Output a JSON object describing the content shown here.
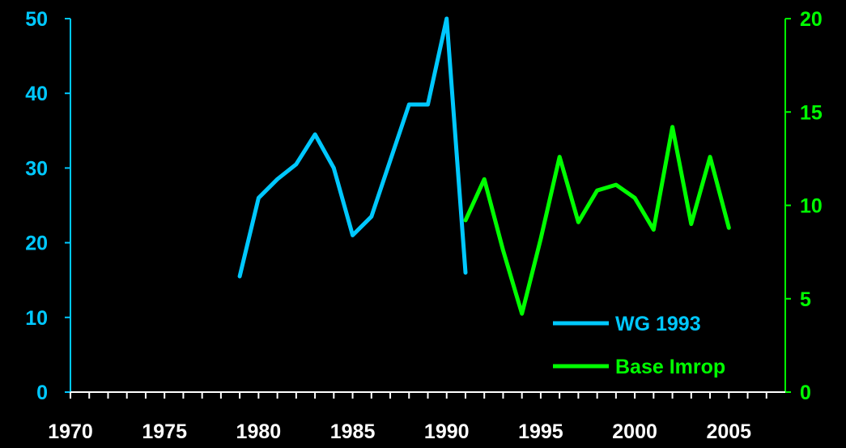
{
  "chart_data": {
    "type": "line",
    "title": "",
    "xlabel": "",
    "ylabel": "",
    "y2label": "",
    "xlim": [
      1970,
      2008
    ],
    "ylim": [
      0,
      50
    ],
    "y2lim": [
      0,
      20
    ],
    "x_ticks": [
      "1970",
      "1975",
      "1980",
      "1985",
      "1990",
      "1995",
      "2000",
      "2005"
    ],
    "y_ticks": [
      "0",
      "10",
      "20",
      "30",
      "40",
      "50"
    ],
    "y2_ticks": [
      "0",
      "5",
      "10",
      "15",
      "20"
    ],
    "grid": false,
    "legend_position": "bottom-right",
    "series": [
      {
        "name": "WG 1993",
        "axis": "left",
        "color": "#00c8ff",
        "x": [
          1979,
          1980,
          1981,
          1982,
          1983,
          1984,
          1985,
          1986,
          1987,
          1988,
          1989,
          1990,
          1991
        ],
        "y": [
          15.5,
          26,
          28.5,
          30.5,
          34.5,
          30,
          21,
          23.5,
          31,
          38.5,
          38.5,
          50,
          16
        ]
      },
      {
        "name": "Base Imrop",
        "axis": "right",
        "color": "#00ff00",
        "x": [
          1991,
          1992,
          1993,
          1994,
          1995,
          1996,
          1997,
          1998,
          1999,
          2000,
          2001,
          2002,
          2003,
          2004,
          2005
        ],
        "y": [
          9.2,
          11.4,
          7.6,
          4.2,
          8.2,
          12.6,
          9.1,
          10.8,
          11.1,
          10.4,
          8.7,
          14.2,
          9.0,
          12.6,
          8.8
        ]
      }
    ]
  }
}
